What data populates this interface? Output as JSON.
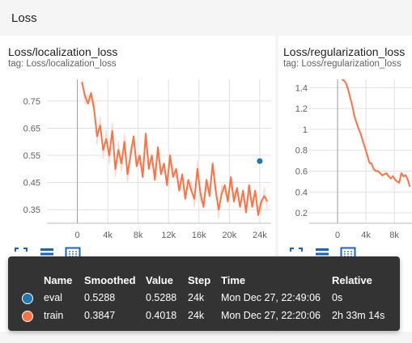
{
  "section": {
    "title": "Loss"
  },
  "cards": [
    {
      "title": "Loss/localization_loss",
      "tag": "tag: Loss/localization_loss"
    },
    {
      "title": "Loss/regularization_loss",
      "tag": "tag: Loss/regularization_loss"
    }
  ],
  "colors": {
    "train": "#ff7043",
    "train_raw": "#ffd8cc",
    "eval": "#1f77b4",
    "accent": "#1565c0"
  },
  "icons": [
    "fullscreen-icon",
    "data-table-icon",
    "fit-domain-icon"
  ],
  "chart_data": [
    {
      "type": "line",
      "title": "",
      "xlabel": "",
      "ylabel": "",
      "xlim": [
        -4000,
        25500
      ],
      "ylim": [
        0.3,
        0.83
      ],
      "xticks": [
        0,
        4000,
        8000,
        12000,
        16000,
        20000,
        24000
      ],
      "xtick_labels": [
        "0",
        "4k",
        "8k",
        "12k",
        "16k",
        "20k",
        "24k"
      ],
      "yticks": [
        0.35,
        0.45,
        0.55,
        0.65,
        0.75
      ],
      "ytick_labels": [
        "0.35",
        "0.45",
        "0.55",
        "0.65",
        "0.75"
      ],
      "series": [
        {
          "name": "train",
          "x": [
            600,
            1000,
            1400,
            1800,
            2200,
            2600,
            3000,
            3400,
            3800,
            4200,
            4600,
            5000,
            5400,
            5800,
            6200,
            6600,
            7000,
            7400,
            7800,
            8200,
            8600,
            9000,
            9400,
            9800,
            10200,
            10600,
            11000,
            11400,
            11800,
            12200,
            12600,
            13000,
            13400,
            13800,
            14200,
            14600,
            15000,
            15400,
            15800,
            16200,
            16600,
            17000,
            17400,
            17800,
            18200,
            18600,
            19000,
            19400,
            19800,
            20200,
            20600,
            21000,
            21400,
            21800,
            22200,
            22600,
            23000,
            23400,
            23800,
            24200,
            24600,
            25000
          ],
          "y": [
            0.82,
            0.77,
            0.74,
            0.78,
            0.72,
            0.62,
            0.66,
            0.57,
            0.61,
            0.55,
            0.64,
            0.5,
            0.57,
            0.52,
            0.6,
            0.48,
            0.55,
            0.62,
            0.51,
            0.55,
            0.47,
            0.63,
            0.5,
            0.55,
            0.46,
            0.58,
            0.48,
            0.52,
            0.44,
            0.55,
            0.47,
            0.5,
            0.42,
            0.48,
            0.39,
            0.46,
            0.42,
            0.39,
            0.5,
            0.41,
            0.36,
            0.46,
            0.4,
            0.52,
            0.42,
            0.35,
            0.41,
            0.44,
            0.38,
            0.47,
            0.38,
            0.43,
            0.36,
            0.42,
            0.34,
            0.44,
            0.36,
            0.42,
            0.33,
            0.38,
            0.4,
            0.38
          ]
        },
        {
          "name": "eval",
          "x": [
            24000
          ],
          "y": [
            0.5288
          ]
        }
      ]
    },
    {
      "type": "line",
      "title": "",
      "xlabel": "",
      "ylabel": "",
      "xlim": [
        -4000,
        10500
      ],
      "ylim": [
        0.1,
        1.48
      ],
      "xticks": [
        0,
        4000,
        8000
      ],
      "xtick_labels": [
        "0",
        "4k",
        "8k"
      ],
      "yticks": [
        0.2,
        0.4,
        0.6,
        0.8,
        1.0,
        1.2,
        1.4
      ],
      "ytick_labels": [
        "0.2",
        "0.4",
        "0.6",
        "0.8",
        "1",
        "1.2",
        "1.4"
      ],
      "series": [
        {
          "name": "train",
          "x": [
            600,
            900,
            1200,
            1500,
            1800,
            2100,
            2400,
            2700,
            3000,
            3300,
            3600,
            3900,
            4200,
            4500,
            4800,
            5100,
            5400,
            5700,
            6000,
            6300,
            6600,
            6900,
            7200,
            7500,
            7800,
            8100,
            8400,
            8700,
            9000,
            9300,
            9600,
            9900,
            10200
          ],
          "y": [
            1.48,
            1.47,
            1.44,
            1.38,
            1.3,
            1.22,
            1.12,
            1.06,
            1.0,
            0.95,
            0.88,
            0.82,
            0.75,
            0.68,
            0.67,
            0.62,
            0.6,
            0.6,
            0.58,
            0.56,
            0.57,
            0.58,
            0.55,
            0.53,
            0.55,
            0.52,
            0.5,
            0.49,
            0.58,
            0.55,
            0.56,
            0.52,
            0.45
          ]
        }
      ]
    }
  ],
  "tooltip": {
    "headers": [
      "Name",
      "Smoothed",
      "Value",
      "Step",
      "Time",
      "Relative"
    ],
    "rows": [
      {
        "name": "eval",
        "smoothed": "0.5288",
        "value": "0.5288",
        "step": "24k",
        "time": "Mon Dec 27, 22:49:06",
        "relative": "0s",
        "color": "#1f77b4"
      },
      {
        "name": "train",
        "smoothed": "0.3847",
        "value": "0.4018",
        "step": "24k",
        "time": "Mon Dec 27, 22:20:06",
        "relative": "2h 33m 14s",
        "color": "#ff7043"
      }
    ]
  }
}
